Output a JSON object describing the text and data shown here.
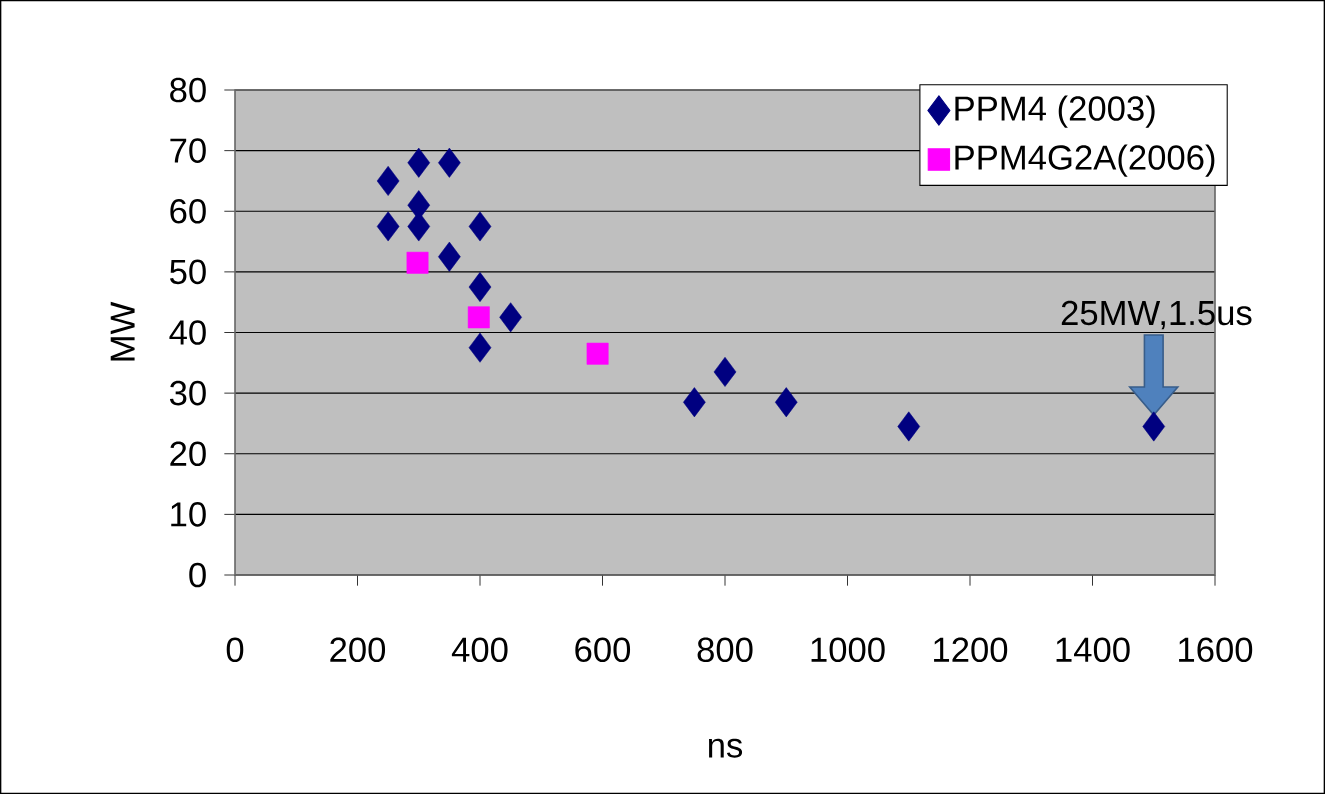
{
  "chart_data": {
    "type": "scatter",
    "xlabel": "ns",
    "ylabel": "MW",
    "xlim": [
      0,
      1600
    ],
    "ylim": [
      0,
      80
    ],
    "xticks": [
      0,
      200,
      400,
      600,
      800,
      1000,
      1200,
      1400,
      1600
    ],
    "yticks": [
      0,
      10,
      20,
      30,
      40,
      50,
      60,
      70,
      80
    ],
    "grid": "y",
    "legend": "top right",
    "series": [
      {
        "name": "PPM4 (2003)",
        "color": "#000080",
        "marker": "diamond",
        "x": [
          250,
          250,
          300,
          300,
          300,
          350,
          350,
          400,
          400,
          400,
          450,
          750,
          800,
          900,
          1100,
          1500
        ],
        "values": [
          65,
          57.5,
          68,
          61,
          57.5,
          68,
          52.5,
          57.5,
          47.5,
          37.5,
          42.5,
          28.5,
          33.5,
          28.5,
          24.5,
          24.5
        ]
      },
      {
        "name": "PPM4G2A(2006)",
        "color": "#ff00ff",
        "marker": "square",
        "x": [
          298,
          398,
          592
        ],
        "values": [
          51.5,
          42.5,
          36.5
        ]
      }
    ],
    "annotations": [
      "25MW,1.5us"
    ]
  }
}
